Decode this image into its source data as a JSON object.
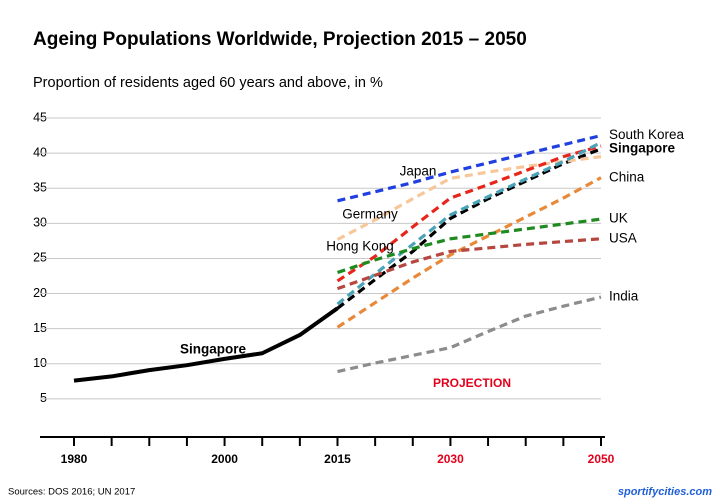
{
  "chart_data": {
    "type": "line",
    "title": "Ageing Populations Worldwide, Projection 2015 – 2050",
    "subtitle": "Proportion of residents aged 60 years and above, in %",
    "categories": [
      "1980",
      null,
      null,
      null,
      "2000",
      null,
      null,
      "2015",
      null,
      null,
      "2030",
      null,
      null,
      null,
      "2050"
    ],
    "category_colors": [
      "#000000",
      null,
      null,
      null,
      "#000000",
      null,
      null,
      "#000000",
      null,
      null,
      "#e3001b",
      null,
      null,
      null,
      "#e3001b"
    ],
    "ylim": [
      0,
      45
    ],
    "yticks": [
      5,
      10,
      15,
      20,
      25,
      30,
      35,
      40,
      45
    ],
    "grid": true,
    "series": [
      {
        "name": "Singapore",
        "color": "#000000",
        "style": "solid",
        "bold": true,
        "values": [
          7.6,
          8.2,
          9.1,
          9.8,
          10.7,
          11.5,
          14.1,
          17.9,
          null,
          null,
          null,
          null,
          null,
          null,
          null
        ]
      },
      {
        "name": "South Korea",
        "color": "#1f3fe0",
        "style": "dashed",
        "bold": false,
        "values": [
          null,
          null,
          null,
          null,
          null,
          null,
          null,
          33.2,
          34.5,
          35.8,
          37.3,
          38.6,
          39.9,
          41.2,
          42.5
        ]
      },
      {
        "name": "Singapore",
        "color": "#000000",
        "style": "dashed",
        "bold": true,
        "values": [
          null,
          null,
          null,
          null,
          null,
          null,
          null,
          17.9,
          22.0,
          26.0,
          30.7,
          33.5,
          36.0,
          38.5,
          40.6
        ]
      },
      {
        "name": "Japan",
        "color": "#f7c79a",
        "style": "dashed",
        "bold": false,
        "values": [
          null,
          null,
          null,
          null,
          null,
          null,
          null,
          27.7,
          30.5,
          33.5,
          36.4,
          37.3,
          38.1,
          38.8,
          39.5
        ]
      },
      {
        "name": "Germany",
        "color": "#e8251b",
        "style": "dashed",
        "bold": false,
        "values": [
          null,
          null,
          null,
          null,
          null,
          null,
          null,
          21.8,
          25.3,
          29.5,
          33.6,
          35.5,
          37.5,
          39.5,
          41.0
        ]
      },
      {
        "name": "Hong Kong",
        "color": "#4aa3b8",
        "style": "dashed",
        "bold": false,
        "values": [
          null,
          null,
          null,
          null,
          null,
          null,
          null,
          18.5,
          22.8,
          27.0,
          31.2,
          33.8,
          36.3,
          38.8,
          41.5
        ]
      },
      {
        "name": "China",
        "color": "#e8893a",
        "style": "dashed",
        "bold": false,
        "values": [
          null,
          null,
          null,
          null,
          null,
          null,
          null,
          15.2,
          18.7,
          22.2,
          25.5,
          28.2,
          30.9,
          33.6,
          36.5
        ]
      },
      {
        "name": "UK",
        "color": "#1f8a1f",
        "style": "dashed",
        "bold": false,
        "values": [
          null,
          null,
          null,
          null,
          null,
          null,
          null,
          23.0,
          24.8,
          26.4,
          27.8,
          28.5,
          29.2,
          29.9,
          30.6
        ]
      },
      {
        "name": "USA",
        "color": "#b5473f",
        "style": "dashed",
        "bold": false,
        "values": [
          null,
          null,
          null,
          null,
          null,
          null,
          null,
          20.7,
          22.6,
          24.5,
          26.0,
          26.5,
          27.0,
          27.4,
          27.8
        ]
      },
      {
        "name": "India",
        "color": "#8c8c8c",
        "style": "dashed",
        "bold": false,
        "values": [
          null,
          null,
          null,
          null,
          null,
          null,
          null,
          8.9,
          10.1,
          11.2,
          12.3,
          14.6,
          16.8,
          18.2,
          19.5
        ]
      }
    ],
    "annotation": "PROJECTION",
    "source": "Sources:  DOS 2016; UN 2017",
    "credit": "sportifycities.com"
  }
}
